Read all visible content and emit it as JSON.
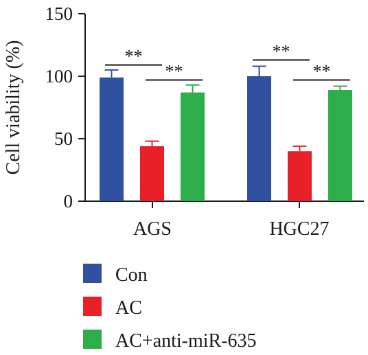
{
  "chart_data": {
    "type": "bar",
    "categories": [
      "AGS",
      "HGC27"
    ],
    "series": [
      {
        "name": "Con",
        "color": "#3050a0",
        "values": [
          99,
          100
        ],
        "errors": [
          6,
          8
        ]
      },
      {
        "name": "AC",
        "color": "#e8202a",
        "values": [
          44,
          40
        ],
        "errors": [
          4,
          4
        ]
      },
      {
        "name": "AC+anti-miR-635",
        "color": "#2eae4b",
        "values": [
          87,
          89
        ],
        "errors": [
          6,
          3
        ]
      }
    ],
    "ylabel": "Cell viability (%)",
    "xlabel": "",
    "title": "",
    "ylim": [
      0,
      150
    ],
    "yticks": [
      0,
      50,
      100,
      150
    ],
    "grid": false,
    "legend_position": "bottom",
    "significance": [
      {
        "category": "AGS",
        "from": "Con",
        "to": "AC",
        "label": "**",
        "at": 109
      },
      {
        "category": "AGS",
        "from": "AC",
        "to": "AC+anti-miR-635",
        "label": "**",
        "at": 97
      },
      {
        "category": "HGC27",
        "from": "Con",
        "to": "AC",
        "label": "**",
        "at": 113
      },
      {
        "category": "HGC27",
        "from": "AC",
        "to": "AC+anti-miR-635",
        "label": "**",
        "at": 97
      }
    ]
  }
}
